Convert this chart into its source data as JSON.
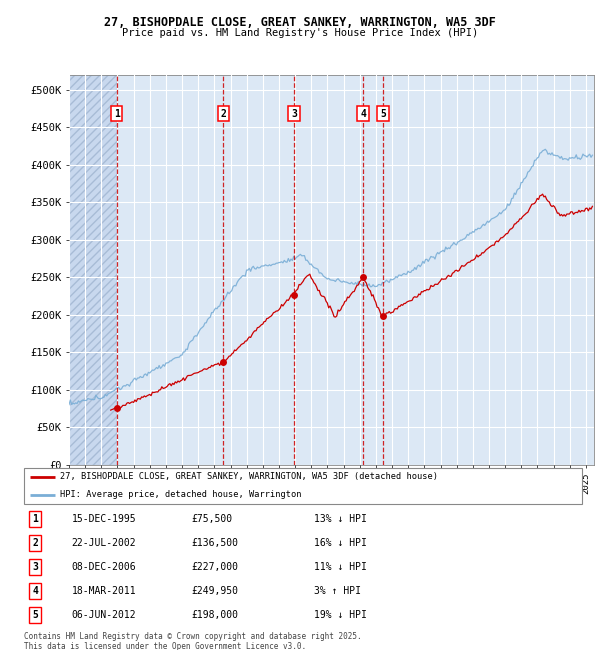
{
  "title_line1": "27, BISHOPDALE CLOSE, GREAT SANKEY, WARRINGTON, WA5 3DF",
  "title_line2": "Price paid vs. HM Land Registry's House Price Index (HPI)",
  "ylabel_ticks": [
    "£0",
    "£50K",
    "£100K",
    "£150K",
    "£200K",
    "£250K",
    "£300K",
    "£350K",
    "£400K",
    "£450K",
    "£500K"
  ],
  "ytick_values": [
    0,
    50000,
    100000,
    150000,
    200000,
    250000,
    300000,
    350000,
    400000,
    450000,
    500000
  ],
  "xlim_start": 1993.0,
  "xlim_end": 2025.5,
  "ylim": [
    0,
    520000
  ],
  "sale_label_dates": [
    1995.958,
    2002.553,
    2006.936,
    2011.208,
    2012.431
  ],
  "sale_prices": [
    75500,
    136500,
    227000,
    249950,
    198000
  ],
  "sale_labels": [
    "1",
    "2",
    "3",
    "4",
    "5"
  ],
  "legend_house": "27, BISHOPDALE CLOSE, GREAT SANKEY, WARRINGTON, WA5 3DF (detached house)",
  "legend_hpi": "HPI: Average price, detached house, Warrington",
  "table_rows": [
    [
      "1",
      "15-DEC-1995",
      "£75,500",
      "13% ↓ HPI"
    ],
    [
      "2",
      "22-JUL-2002",
      "£136,500",
      "16% ↓ HPI"
    ],
    [
      "3",
      "08-DEC-2006",
      "£227,000",
      "11% ↓ HPI"
    ],
    [
      "4",
      "18-MAR-2011",
      "£249,950",
      "3% ↑ HPI"
    ],
    [
      "5",
      "06-JUN-2012",
      "£198,000",
      "19% ↓ HPI"
    ]
  ],
  "footer": "Contains HM Land Registry data © Crown copyright and database right 2025.\nThis data is licensed under the Open Government Licence v3.0.",
  "house_color": "#cc0000",
  "hpi_color": "#7aaed6",
  "bg_color": "#dce8f5",
  "grid_color": "#b0c4de"
}
